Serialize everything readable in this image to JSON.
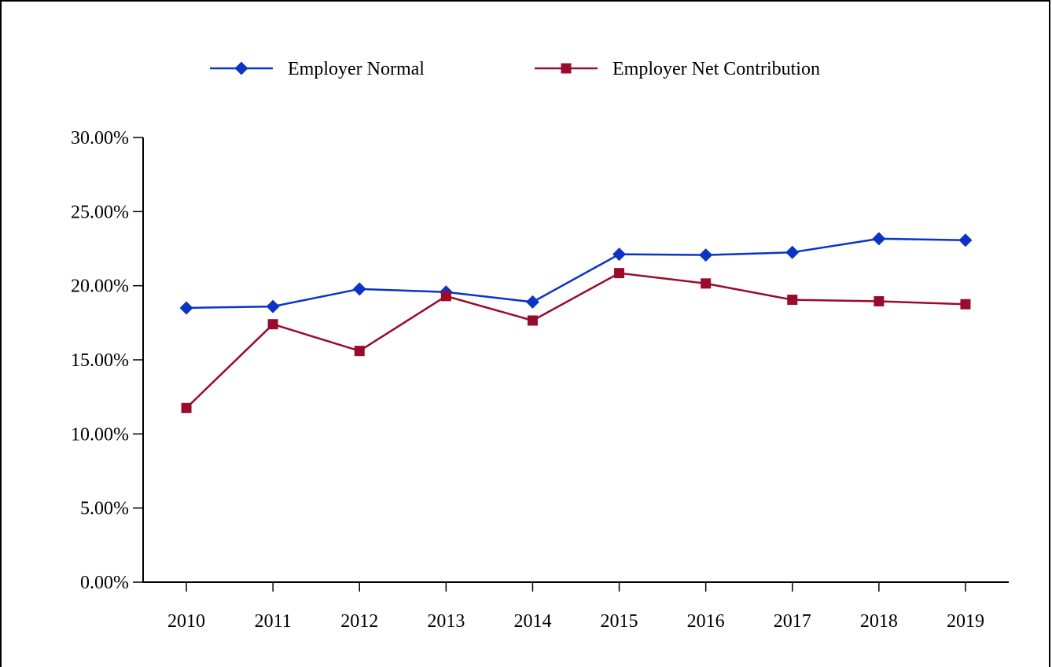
{
  "chart_data": {
    "type": "line",
    "categories": [
      "2010",
      "2011",
      "2012",
      "2013",
      "2014",
      "2015",
      "2016",
      "2017",
      "2018",
      "2019"
    ],
    "series": [
      {
        "name": "Employer Normal",
        "color": "#0a33c8",
        "marker": "diamond",
        "values": [
          18.5,
          18.6,
          19.78,
          19.57,
          18.9,
          22.12,
          22.07,
          22.25,
          23.17,
          23.07
        ]
      },
      {
        "name": "Employer Net Contribution",
        "color": "#9b0a2b",
        "marker": "square",
        "values": [
          11.75,
          17.4,
          15.6,
          19.3,
          17.65,
          20.85,
          20.15,
          19.05,
          18.95,
          18.75
        ]
      }
    ],
    "ylim": [
      0,
      30
    ],
    "yticks": [
      0,
      5,
      10,
      15,
      20,
      25,
      30
    ],
    "ytick_labels": [
      "0.00%",
      "5.00%",
      "10.00%",
      "15.00%",
      "20.00%",
      "25.00%",
      "30.00%"
    ],
    "grid": false,
    "legend_position": "top"
  }
}
